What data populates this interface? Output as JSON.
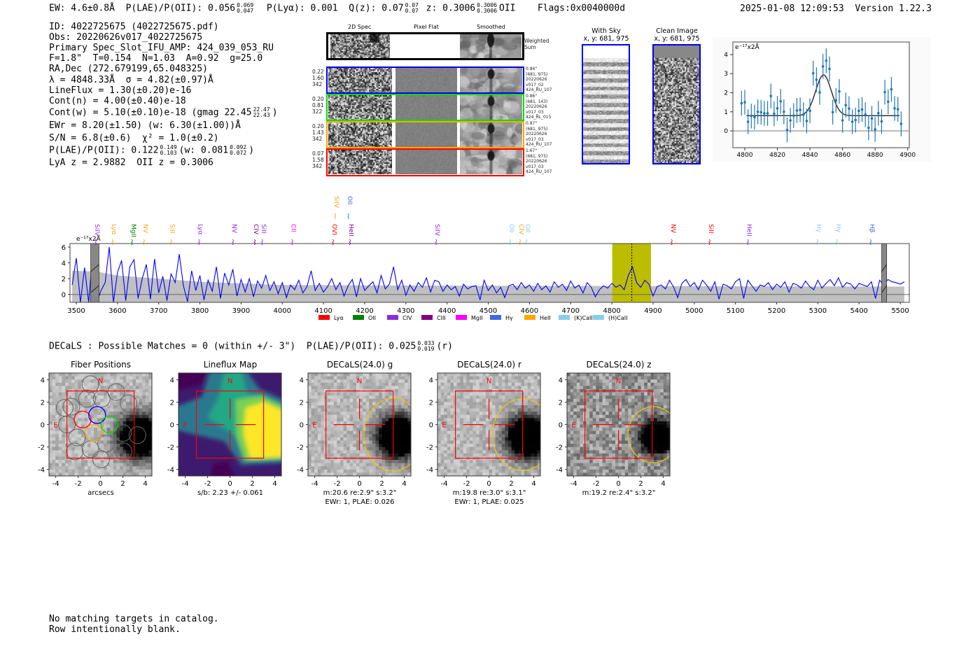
{
  "header": {
    "ew": "EW: 4.6±0.8Å",
    "plae": "P(LAE)/P(OII): 0.056",
    "plae_hi": "0.069",
    "plae_lo": "0.047",
    "plya": "P(Lyα): 0.001",
    "qz": "Q(z): 0.07",
    "qz_hi": "0.07",
    "qz_lo": "0.07",
    "z": "z: 0.3006",
    "z_hi": "0.3006",
    "z_lo": "0.3006",
    "z_line": "OII",
    "flags": "Flags:0x0040000d",
    "datetime": "2025-01-08 12:09:53",
    "version": "Version 1.22.3"
  },
  "info": {
    "id": "ID: 4022725675 (4022725675.pdf)",
    "obs": "Obs: 20220626v017_4022725675",
    "primary": "Primary Spec_Slot_IFU_AMP: 424_039_053_RU",
    "params": "F=1.8\"  T=0.154  N=1.03  A=0.92  g=25.0",
    "radec": "RA,Dec (272.679199,65.048325)",
    "lambda": "λ = 4848.33Å  σ = 4.82(±0.97)Å",
    "lineflux": "LineFlux = 1.30(±0.20)e-16",
    "cont_n": "Cont(n) = 4.00(±0.40)e-18",
    "cont_w": "Cont(w) = 5.10(±0.10)e-18 (gmag 22.45",
    "gmag_hi": "22.47",
    "gmag_lo": "22.43",
    "cont_w_end": ")",
    "ewr": "EWr = 8.20(±1.50) (w: 6.30(±1.00))Å",
    "sn": "S/N = 6.8(±0.6)  χ² = 1.0(±0.2)",
    "plae": "P(LAE)/P(OII): 0.122",
    "plae_hi": "0.149",
    "plae_lo": "0.103",
    "plae_w": "(w: 0.081",
    "plae_w_hi": "0.092",
    "plae_w_lo": "0.072",
    "plae_w_end": ")",
    "z": "LyA z = 2.9882  OII z = 0.3006"
  },
  "spec2d": {
    "headers": [
      "2D Spec",
      "Pixel Flat",
      "Smoothed"
    ],
    "weighted_label": "Weighted Sum",
    "rows": [
      {
        "color": "#0000ff",
        "left": [
          "0.22",
          "1.60",
          "342"
        ],
        "right": [
          "0.84\"",
          "(681, 975)",
          "20220626",
          "v017_02",
          "424_RU_107"
        ]
      },
      {
        "color": "#00e000",
        "left": [
          "0.20",
          "0.81",
          "322"
        ],
        "right": [
          "0.86\"",
          "(681, 143)",
          "20220626",
          "v017_03",
          "424_RL_015"
        ]
      },
      {
        "color": "#ffa500",
        "left": [
          "0.20",
          "1.43",
          "342"
        ],
        "right": [
          "0.87\"",
          "(681, 975)",
          "20220626",
          "v017_03",
          "424_RU_107"
        ]
      },
      {
        "color": "#ff0000",
        "left": [
          "0.07",
          "1.58",
          "342"
        ],
        "right": [
          "1.67\"",
          "(681, 975)",
          "20220626",
          "v017_03",
          "424_RU_107"
        ]
      }
    ]
  },
  "stamps": [
    {
      "title": "With Sky",
      "coords": "x, y: 681, 975"
    },
    {
      "title": "Clean Image",
      "coords": "x, y: 681, 975"
    }
  ],
  "chart_data": [
    {
      "type": "scatter",
      "title": "",
      "unit_label": "e⁻¹⁷x2Å",
      "xlim": [
        4792.7,
        4901
      ],
      "ylim": [
        -0.88,
        4.66
      ],
      "xticks": [
        4800,
        4820,
        4840,
        4860,
        4880,
        4900
      ],
      "yticks": [
        0,
        1,
        2,
        3,
        4
      ],
      "x": [
        4798,
        4800,
        4802,
        4804,
        4806,
        4808,
        4810,
        4812,
        4814,
        4816,
        4818,
        4820,
        4822,
        4824,
        4826,
        4828,
        4830,
        4832,
        4834,
        4836,
        4838,
        4840,
        4842,
        4844,
        4846,
        4848,
        4850,
        4852,
        4854,
        4856,
        4858,
        4860,
        4862,
        4864,
        4866,
        4868,
        4870,
        4872,
        4874,
        4876,
        4878,
        4880,
        4882,
        4884,
        4886,
        4888,
        4890,
        4892,
        4894,
        4896
      ],
      "y": [
        1.45,
        1.5,
        0.48,
        0.78,
        0.72,
        1.0,
        0.98,
        0.92,
        0.92,
        1.83,
        0.9,
        1.18,
        1.55,
        1.0,
        0.05,
        0.55,
        0.8,
        1.07,
        1.1,
        0.85,
        0.52,
        1.05,
        3.02,
        2.68,
        2.02,
        3.38,
        3.68,
        3.25,
        0.98,
        1.6,
        2.07,
        0.55,
        1.35,
        1.17,
        0.48,
        0.57,
        1.05,
        1.12,
        0.85,
        0.16,
        0.65,
        0.08,
        0.93,
        0.5,
        2.03,
        1.53,
        2.18,
        1.18,
        1.13,
        0.37
      ],
      "yerr": 0.65,
      "fit": {
        "continuum": 0.8,
        "amplitude": 2.13,
        "center": 4848.33,
        "sigma": 4.82,
        "range": [
          4801,
          4895
        ]
      },
      "colors": {
        "points": "#1f77b4",
        "fit": "#333333"
      }
    },
    {
      "type": "line",
      "unit_label": "e⁻¹⁷x2Å",
      "xlim": [
        3484.7,
        5522
      ],
      "ylim": [
        -1,
        6.44
      ],
      "xticks": [
        3500,
        3600,
        3700,
        3800,
        3900,
        4000,
        4100,
        4200,
        4300,
        4400,
        4500,
        4600,
        4700,
        4800,
        4900,
        5000,
        5100,
        5200,
        5300,
        5400,
        5500
      ],
      "yticks": [
        0,
        2,
        4,
        6
      ],
      "x_start": 3490,
      "x_step": 10,
      "flux": [
        1.2,
        4.6,
        -1,
        3.4,
        -1,
        5.3,
        -1,
        0.5,
        1.5,
        6.0,
        -1,
        2.8,
        4.3,
        -0.8,
        3.5,
        4.4,
        -0.5,
        2.0,
        3.8,
        -0.6,
        4.5,
        0.2,
        2.3,
        -0.8,
        2.6,
        1.5,
        5.1,
        1.1,
        -0.9,
        3.0,
        0.5,
        2.4,
        -0.7,
        1.8,
        0.4,
        3.5,
        -0.5,
        2.7,
        1.2,
        3.2,
        -0.2,
        1.9,
        0.3,
        2.0,
        -0.3,
        1.7,
        0.8,
        2.4,
        0.5,
        1.6,
        0.1,
        1.5,
        -0.4,
        1.2,
        0.6,
        1.8,
        0.2,
        1.0,
        3.0,
        0.5,
        1.4,
        0.3,
        1.0,
        2.0,
        0.6,
        1.5,
        -0.2,
        1.1,
        1.9,
        -0.3,
        2.0,
        0.5,
        1.1,
        1.6,
        0.2,
        2.4,
        0.7,
        1.3,
        3.5,
        0.6,
        1.8,
        -0.1,
        1.2,
        0.4,
        1.5,
        0.9,
        2.1,
        0.3,
        1.8,
        1.6,
        0.4,
        1.2,
        0.6,
        1.0,
        -0.2,
        1.3,
        0.7,
        1.0,
        1.1,
        -0.7,
        1.8,
        0.5,
        1.2,
        0.2,
        0.9,
        -0.4,
        1.1,
        1.3,
        0.6,
        1.5,
        0.8,
        1.2,
        0.4,
        1.4,
        0.6,
        1.1,
        0.3,
        1.6,
        0.9,
        1.3,
        0.5,
        1.7,
        0.8,
        1.2,
        0.2,
        1.5,
        0.9,
        -0.3,
        0.6,
        1.1,
        0.8,
        1.4,
        0.9,
        1.2,
        0.6,
        2.4,
        3.5,
        1.5,
        0.9,
        1.8,
        1.3,
        -0.2,
        1.0,
        1.2,
        0.7,
        1.8,
        0.9,
        -0.4,
        1.4,
        1.9,
        1.0,
        1.5,
        0.6,
        1.8,
        1.2,
        0.4,
        1.6,
        -0.6,
        1.3,
        1.1,
        0.7,
        1.6,
        2.0,
        -0.5,
        1.8,
        1.1,
        0.4,
        1.2,
        1.0,
        1.5,
        0.6,
        1.3,
        0.9,
        1.6,
        0.3,
        1.4,
        1.2,
        0.8,
        1.7,
        1.0,
        0.6,
        1.8,
        0.8,
        1.4,
        1.9,
        1.1,
        2.1,
        0.9,
        1.5,
        1.3,
        0.7,
        1.4,
        1.2,
        1.0,
        1.6,
        -0.5,
        1.8,
        1.2,
        1.9,
        1.6,
        1.5,
        1.3,
        1.6
      ],
      "error_band": [
        [
          3490,
          3.0
        ],
        [
          3550,
          2.9
        ],
        [
          3600,
          2.4
        ],
        [
          3700,
          2.0
        ],
        [
          3800,
          1.6
        ],
        [
          3900,
          1.4
        ],
        [
          4000,
          1.2
        ],
        [
          4200,
          1.15
        ],
        [
          4500,
          1.1
        ],
        [
          5000,
          1.05
        ],
        [
          5510,
          1.0
        ]
      ],
      "highlight": {
        "range": [
          4801,
          4895
        ],
        "center": 4848.33,
        "color": "#bcbc00"
      },
      "masked": [
        [
          3535,
          3555
        ],
        [
          5455,
          5467
        ]
      ],
      "line_color": "#0000ff",
      "lines": [
        {
          "name": "SiIV",
          "wave": 3551,
          "color": "#9932cc",
          "row": 0
        },
        {
          "name": "Lyα",
          "wave": 3592,
          "color": "#f5a623",
          "row": 0
        },
        {
          "name": "MgII",
          "wave": 3639,
          "color": "#008000",
          "row": 0
        },
        {
          "name": "NV",
          "wave": 3668,
          "color": "#f5a623",
          "row": 0
        },
        {
          "name": "SiII",
          "wave": 3734,
          "color": "#f5a623",
          "row": 0
        },
        {
          "name": "Lyα",
          "wave": 3802,
          "color": "#8a2be2",
          "row": 0
        },
        {
          "name": "NV",
          "wave": 3884,
          "color": "#8a2be2",
          "row": 0
        },
        {
          "name": "CIV",
          "wave": 3937,
          "color": "#800080",
          "row": 0
        },
        {
          "name": "SiII",
          "wave": 3955,
          "color": "#8a2be2",
          "row": 0
        },
        {
          "name": "CII",
          "wave": 4028,
          "color": "#ff00ff",
          "row": 0
        },
        {
          "name": "OVI",
          "wave": 4127,
          "color": "#ff0000",
          "row": 0
        },
        {
          "name": "HeII",
          "wave": 4168,
          "color": "#800080",
          "row": 0
        },
        {
          "name": "SiIV",
          "wave": 4377,
          "color": "#8a2be2",
          "row": 0
        },
        {
          "name": "OII",
          "wave": 4557,
          "color": "#87ceeb",
          "row": 0
        },
        {
          "name": "CIV",
          "wave": 4581,
          "color": "#f5a623",
          "row": 0
        },
        {
          "name": "OII",
          "wave": 4596,
          "color": "#87ceeb",
          "row": 0
        },
        {
          "name": "NV",
          "wave": 4949,
          "color": "#ff0000",
          "row": 0
        },
        {
          "name": "SiII",
          "wave": 5041,
          "color": "#ff0000",
          "row": 0
        },
        {
          "name": "HeII",
          "wave": 5134,
          "color": "#8a2be2",
          "row": 0
        },
        {
          "name": "Hγ",
          "wave": 5303,
          "color": "#87ceeb",
          "row": 0
        },
        {
          "name": "Hγ",
          "wave": 5350,
          "color": "#87ceeb",
          "row": 0
        },
        {
          "name": "Hβ",
          "wave": 5432,
          "color": "#4169e1",
          "row": 0
        },
        {
          "name": "SiIV",
          "wave": 4132,
          "color": "#f5a623",
          "row": 1
        },
        {
          "name": "OII",
          "wave": 4164,
          "color": "#4169e1",
          "row": 1
        }
      ],
      "legend": [
        {
          "label": "Lyα",
          "color": "#ff0000"
        },
        {
          "label": "OII",
          "color": "#008000"
        },
        {
          "label": "CIV",
          "color": "#8a2be2"
        },
        {
          "label": "CIII",
          "color": "#800080"
        },
        {
          "label": "MgII",
          "color": "#ff00ff"
        },
        {
          "label": "Hγ",
          "color": "#4169e1"
        },
        {
          "label": "HeII",
          "color": "#ffa500"
        },
        {
          "label": "(K)CaII",
          "color": "#87ceeb"
        },
        {
          "label": "(H)CaII",
          "color": "#87ceeb"
        }
      ],
      "legend_placement": "bottom"
    }
  ],
  "catalog": {
    "summary": "DECaLS : Possible Matches = 0 (within +/- 3\")  P(LAE)/P(OII): 0.025",
    "summary_hi": "0.033",
    "summary_lo": "0.019",
    "summary_end": "(r)"
  },
  "cutouts": [
    {
      "title": "Fiber Positions",
      "kind": "fibers",
      "xlabel": [
        "arcsecs"
      ]
    },
    {
      "title": "Lineflux Map",
      "kind": "lineflux",
      "xlabel": [
        "s/b: 2.23 +/- 0.061"
      ]
    },
    {
      "title": "DECaLS(24.0) g",
      "kind": "image",
      "xlabel": [
        "m:20.6  re:2.9\"  s:3.2\"",
        "EWr: 1, PLAE: 0.026"
      ],
      "ellipse": [
        3.0,
        -0.9,
        2.6,
        3.25
      ]
    },
    {
      "title": "DECaLS(24.0) r",
      "kind": "image",
      "xlabel": [
        "m:19.8  re:3.0\"  s:3.1\"",
        "EWr: 1, PLAE: 0.025"
      ],
      "ellipse": [
        3.0,
        -0.9,
        2.7,
        3.2
      ]
    },
    {
      "title": "DECaLS(24.0) z",
      "kind": "image",
      "xlabel": [
        "m:19.2  re:2.4\"  s:3.2\""
      ],
      "ellipse": [
        3.1,
        -0.9,
        2.25,
        2.5
      ]
    }
  ],
  "cutout_labels": {
    "north": "N",
    "east": "E",
    "ticks": [
      -4,
      -2,
      0,
      2,
      4
    ]
  },
  "footer": [
    "No matching targets in catalog.",
    "Row intentionally blank."
  ]
}
